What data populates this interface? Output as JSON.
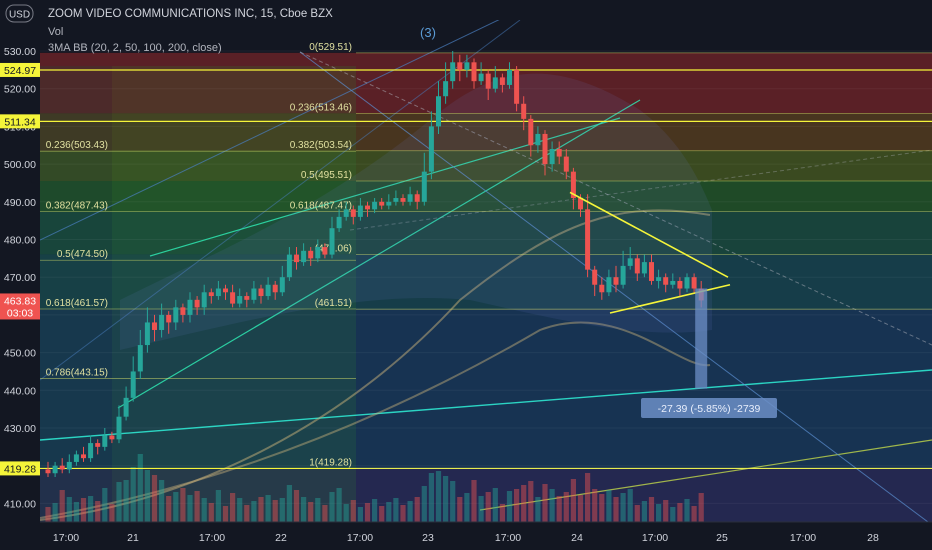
{
  "header": {
    "currency": "USD",
    "title": "ZOOM VIDEO COMMUNICATIONS INC, 15, Cboe BZX",
    "vol_label": "Vol",
    "indicator_label": "3MA BB (20, 2, 50, 100, 200, close)",
    "wave_label": "(3)"
  },
  "colors": {
    "background": "#131722",
    "up": "#26a69a",
    "down": "#ef5350",
    "price_tag": "#ef5350",
    "hline": "#f5f53a",
    "triangle": "#f5f53a",
    "measure": "#6c8fc7"
  },
  "chart_data": {
    "type": "candlestick",
    "ylim": [
      404,
      533
    ],
    "y_ticks": [
      "530.00",
      "520.00",
      "510.00",
      "500.00",
      "490.00",
      "480.00",
      "470.00",
      "460.00",
      "450.00",
      "440.00",
      "430.00",
      "420.00",
      "410.00"
    ],
    "x_ticks": [
      "17:00",
      "21",
      "17:00",
      "22",
      "17:00",
      "23",
      "17:00",
      "24",
      "17:00",
      "25",
      "17:00",
      "28"
    ],
    "price_tags": [
      {
        "label": "524.97",
        "value": 524.97
      },
      {
        "label": "511.34",
        "value": 511.34
      },
      {
        "label": "419.28",
        "value": 419.28
      }
    ],
    "last_price": {
      "label": "463.83",
      "value": 463.83,
      "countdown": "03:03"
    },
    "fib_left": [
      {
        "label": "0.236(503.43)",
        "value": 503.43
      },
      {
        "label": "0.382(487.43)",
        "value": 487.43
      },
      {
        "label": "0.5(474.50)",
        "value": 474.5
      },
      {
        "label": "0.618(461.57)",
        "value": 461.57
      },
      {
        "label": "0.786(443.15)",
        "value": 443.15
      }
    ],
    "fib_right": [
      {
        "label": "0(529.51)",
        "value": 529.51
      },
      {
        "label": "0.236(513.46)",
        "value": 513.46
      },
      {
        "label": "0.382(503.54)",
        "value": 503.54
      },
      {
        "label": "0.5(495.51)",
        "value": 495.51
      },
      {
        "label": "0.618(487.47)",
        "value": 487.47
      },
      {
        "label": "(476.06)",
        "value": 476.06
      },
      {
        "label": "(461.51)",
        "value": 461.51
      },
      {
        "label": "1(419.28)",
        "value": 419.28
      }
    ],
    "measure_label": "-27.39 (-5.85%) -2739",
    "candles": [
      [
        419,
        418,
        421,
        417,
        1
      ],
      [
        418,
        420,
        421,
        417,
        1
      ],
      [
        420,
        419,
        422,
        418,
        2
      ],
      [
        419,
        421,
        423,
        418,
        2
      ],
      [
        421,
        423,
        424,
        420,
        1
      ],
      [
        423,
        422,
        425,
        421,
        1
      ],
      [
        422,
        426,
        428,
        421,
        2
      ],
      [
        426,
        425,
        427,
        423,
        1
      ],
      [
        425,
        428,
        430,
        424,
        2
      ],
      [
        428,
        427,
        429,
        426,
        1
      ],
      [
        427,
        433,
        436,
        426,
        3
      ],
      [
        433,
        438,
        441,
        432,
        4
      ],
      [
        438,
        445,
        449,
        437,
        5
      ],
      [
        445,
        452,
        456,
        443,
        6
      ],
      [
        452,
        458,
        462,
        450,
        5
      ],
      [
        458,
        456,
        460,
        453,
        4
      ],
      [
        456,
        460,
        463,
        454,
        3
      ],
      [
        460,
        458,
        461,
        455,
        2
      ],
      [
        458,
        462,
        464,
        456,
        2
      ],
      [
        462,
        460,
        463,
        458,
        2
      ],
      [
        460,
        464,
        466,
        458,
        2
      ],
      [
        464,
        462,
        465,
        460,
        2
      ],
      [
        462,
        466,
        468,
        460,
        2
      ],
      [
        466,
        465,
        467,
        463,
        1
      ],
      [
        465,
        467,
        469,
        464,
        2
      ],
      [
        467,
        466,
        468,
        464,
        1
      ],
      [
        466,
        463,
        468,
        462,
        2
      ],
      [
        463,
        465,
        467,
        462,
        1
      ],
      [
        465,
        464,
        466,
        462,
        1
      ],
      [
        464,
        467,
        469,
        463,
        1
      ],
      [
        467,
        465,
        468,
        463,
        1
      ],
      [
        465,
        468,
        470,
        464,
        2
      ],
      [
        468,
        466,
        469,
        464,
        1
      ],
      [
        466,
        470,
        473,
        465,
        2
      ],
      [
        470,
        476,
        478,
        469,
        3
      ],
      [
        476,
        474,
        478,
        472,
        2
      ],
      [
        474,
        477,
        479,
        473,
        2
      ],
      [
        477,
        475,
        478,
        473,
        1
      ],
      [
        475,
        478,
        480,
        474,
        1
      ],
      [
        478,
        476,
        479,
        475,
        1
      ],
      [
        476,
        483,
        486,
        475,
        2
      ],
      [
        483,
        486,
        488,
        482,
        2
      ],
      [
        486,
        488,
        490,
        485,
        1
      ],
      [
        488,
        486,
        489,
        484,
        1
      ],
      [
        486,
        489,
        491,
        485,
        1
      ],
      [
        489,
        488,
        490,
        486,
        1
      ],
      [
        488,
        490,
        491,
        487,
        1
      ],
      [
        490,
        489,
        491,
        488,
        1
      ],
      [
        489,
        490,
        492,
        488,
        1
      ],
      [
        490,
        491,
        493,
        489,
        1
      ],
      [
        491,
        490,
        492,
        489,
        1
      ],
      [
        490,
        492,
        494,
        489,
        1
      ],
      [
        492,
        490,
        493,
        488,
        1
      ],
      [
        490,
        498,
        503,
        489,
        3
      ],
      [
        498,
        510,
        514,
        496,
        4
      ],
      [
        510,
        518,
        522,
        508,
        5
      ],
      [
        518,
        522,
        527,
        516,
        4
      ],
      [
        522,
        527,
        530,
        520,
        3
      ],
      [
        527,
        525,
        529,
        522,
        2
      ],
      [
        525,
        527,
        529,
        523,
        2
      ],
      [
        527,
        522,
        528,
        520,
        3
      ],
      [
        522,
        524,
        527,
        521,
        2
      ],
      [
        524,
        520,
        525,
        517,
        2
      ],
      [
        520,
        523,
        526,
        519,
        2
      ],
      [
        523,
        521,
        524,
        519,
        1
      ],
      [
        521,
        525,
        527,
        520,
        2
      ],
      [
        525,
        516,
        526,
        514,
        3
      ],
      [
        516,
        512,
        518,
        509,
        3
      ],
      [
        512,
        505,
        513,
        502,
        3
      ],
      [
        505,
        508,
        510,
        503,
        2
      ],
      [
        508,
        500,
        509,
        497,
        3
      ],
      [
        500,
        504,
        506,
        498,
        2
      ],
      [
        504,
        502,
        506,
        500,
        2
      ],
      [
        502,
        498,
        504,
        496,
        2
      ],
      [
        498,
        491,
        499,
        488,
        3
      ],
      [
        491,
        488,
        492,
        486,
        2
      ],
      [
        488,
        472,
        492,
        470,
        4
      ],
      [
        472,
        468,
        473,
        465,
        3
      ],
      [
        468,
        466,
        470,
        464,
        2
      ],
      [
        466,
        470,
        472,
        465,
        2
      ],
      [
        470,
        468,
        473,
        466,
        2
      ],
      [
        468,
        473,
        477,
        467,
        2
      ],
      [
        473,
        475,
        478,
        472,
        2
      ],
      [
        475,
        471,
        476,
        469,
        1
      ],
      [
        471,
        474,
        476,
        470,
        1
      ],
      [
        474,
        469,
        476,
        468,
        1
      ],
      [
        469,
        470,
        472,
        467,
        1
      ],
      [
        470,
        468,
        471,
        466,
        1
      ],
      [
        468,
        469,
        471,
        467,
        1
      ],
      [
        469,
        467,
        470,
        465,
        1
      ],
      [
        467,
        470,
        471,
        466,
        1
      ],
      [
        470,
        467,
        471,
        466,
        1
      ],
      [
        467,
        463.83,
        469,
        462,
        2
      ]
    ],
    "triangle": {
      "upper": [
        [
          118,
          492.5
        ],
        [
          148,
          470
        ]
      ],
      "lower": [
        [
          0,
          460.5
        ],
        [
          21,
          468
        ]
      ]
    },
    "measure": {
      "from": 467,
      "to": 440.44
    }
  }
}
